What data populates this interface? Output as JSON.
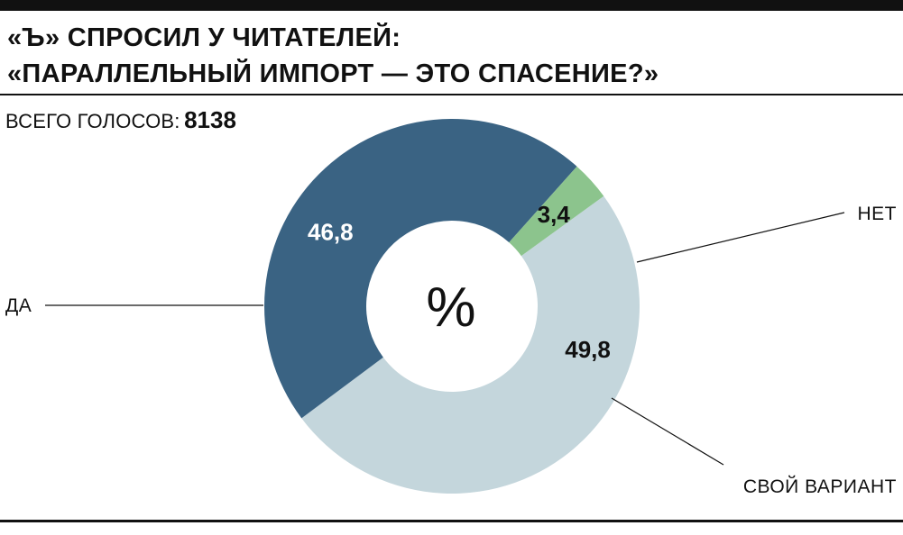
{
  "title": {
    "line1": "«Ъ» СПРОСИЛ У ЧИТАТЕЛЕЙ:",
    "line2": "«ПАРАЛЛЕЛЬНЫЙ ИМПОРТ — ЭТО СПАСЕНИЕ?»"
  },
  "votes": {
    "label": "ВСЕГО ГОЛОСОВ:",
    "value": "8138"
  },
  "chart_data": {
    "type": "pie",
    "unit_symbol": "%",
    "legend": "none",
    "categories": [
      "ДА",
      "НЕТ",
      "СВОЙ ВАРИАНТ"
    ],
    "values": [
      49.8,
      46.8,
      3.4
    ],
    "value_labels": [
      "49,8",
      "46,8",
      "3,4"
    ],
    "colors": [
      "#c4d6dc",
      "#3a6383",
      "#8cc48d"
    ],
    "label_colors": [
      "#111111",
      "#ffffff",
      "#111111"
    ]
  }
}
